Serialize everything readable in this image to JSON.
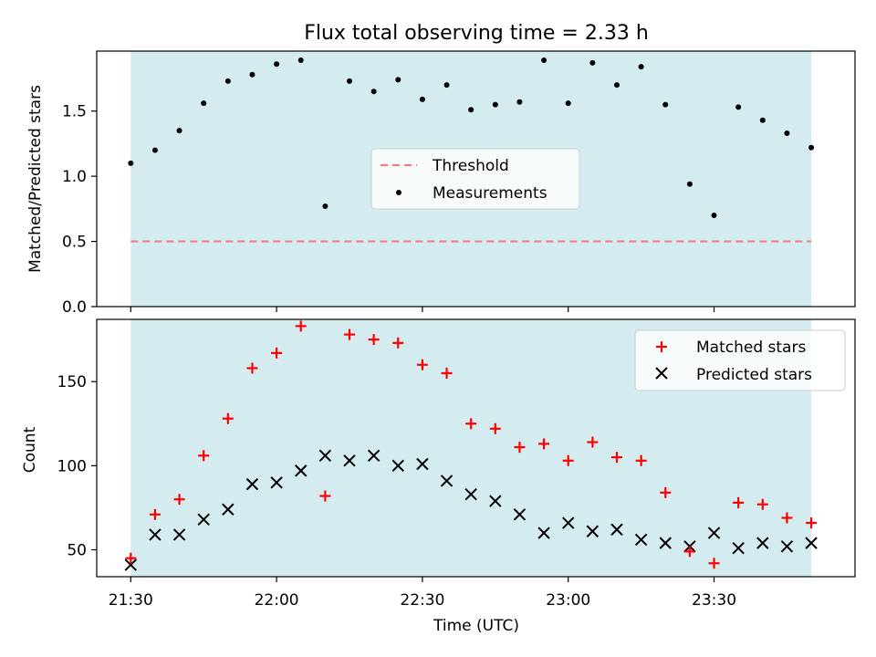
{
  "chart_data": [
    {
      "type": "scatter",
      "title": "Flux total observing time = 2.33 h",
      "xlabel": "",
      "ylabel": "Matched/Predicted stars",
      "xlim": [
        "21:23",
        "23:59"
      ],
      "ylim": [
        0,
        1.96
      ],
      "yticks": [
        "0.0",
        "0.5",
        "1.0",
        "1.5"
      ],
      "grid": false,
      "legend_position": "center",
      "shaded_interval": [
        "21:30",
        "23:50"
      ],
      "threshold": {
        "name": "Threshold",
        "y": 0.5,
        "color": "#f08080",
        "style": "dashed"
      },
      "series": [
        {
          "name": "Measurements",
          "color": "#000000",
          "marker": "dot",
          "x": [
            "21:30",
            "21:35",
            "21:40",
            "21:45",
            "21:50",
            "21:55",
            "22:00",
            "22:05",
            "22:10",
            "22:15",
            "22:20",
            "22:25",
            "22:30",
            "22:35",
            "22:40",
            "22:45",
            "22:50",
            "22:55",
            "23:00",
            "23:05",
            "23:10",
            "23:15",
            "23:20",
            "23:25",
            "23:30",
            "23:35",
            "23:40",
            "23:45",
            "23:50"
          ],
          "y": [
            1.1,
            1.2,
            1.35,
            1.56,
            1.73,
            1.78,
            1.86,
            1.89,
            0.77,
            1.73,
            1.65,
            1.74,
            1.59,
            1.7,
            1.51,
            1.55,
            1.57,
            1.89,
            1.56,
            1.87,
            1.7,
            1.84,
            1.55,
            0.94,
            0.7,
            1.53,
            1.43,
            1.33,
            1.22
          ]
        }
      ]
    },
    {
      "type": "scatter",
      "title": "",
      "xlabel": "Time (UTC)",
      "ylabel": "Count",
      "xlim": [
        "21:23",
        "23:59"
      ],
      "ylim": [
        34,
        187
      ],
      "xticks": [
        "21:30",
        "22:00",
        "22:30",
        "23:00",
        "23:30"
      ],
      "yticks": [
        "50",
        "100",
        "150"
      ],
      "grid": false,
      "legend_position": "top-right",
      "shaded_interval": [
        "21:30",
        "23:50"
      ],
      "series": [
        {
          "name": "Matched stars",
          "color": "#ff0000",
          "marker": "plus",
          "x": [
            "21:30",
            "21:35",
            "21:40",
            "21:45",
            "21:50",
            "21:55",
            "22:00",
            "22:05",
            "22:10",
            "22:15",
            "22:20",
            "22:25",
            "22:30",
            "22:35",
            "22:40",
            "22:45",
            "22:50",
            "22:55",
            "23:00",
            "23:05",
            "23:10",
            "23:15",
            "23:20",
            "23:25",
            "23:30",
            "23:35",
            "23:40",
            "23:45",
            "23:50"
          ],
          "y": [
            45,
            71,
            80,
            106,
            128,
            158,
            167,
            183,
            82,
            178,
            175,
            173,
            160,
            155,
            125,
            122,
            111,
            113,
            103,
            114,
            105,
            103,
            84,
            49,
            42,
            78,
            77,
            69,
            66
          ]
        },
        {
          "name": "Predicted stars",
          "color": "#000000",
          "marker": "x",
          "x": [
            "21:30",
            "21:35",
            "21:40",
            "21:45",
            "21:50",
            "21:55",
            "22:00",
            "22:05",
            "22:10",
            "22:15",
            "22:20",
            "22:25",
            "22:30",
            "22:35",
            "22:40",
            "22:45",
            "22:50",
            "22:55",
            "23:00",
            "23:05",
            "23:10",
            "23:15",
            "23:20",
            "23:25",
            "23:30",
            "23:35",
            "23:40",
            "23:45",
            "23:50"
          ],
          "y": [
            41,
            59,
            59,
            68,
            74,
            89,
            90,
            97,
            106,
            103,
            106,
            100,
            101,
            91,
            83,
            79,
            71,
            60,
            66,
            61,
            62,
            56,
            54,
            52,
            60,
            51,
            54,
            52,
            54
          ]
        }
      ]
    }
  ],
  "colors": {
    "shade": "#d4ebf0",
    "threshold": "#f08080"
  }
}
